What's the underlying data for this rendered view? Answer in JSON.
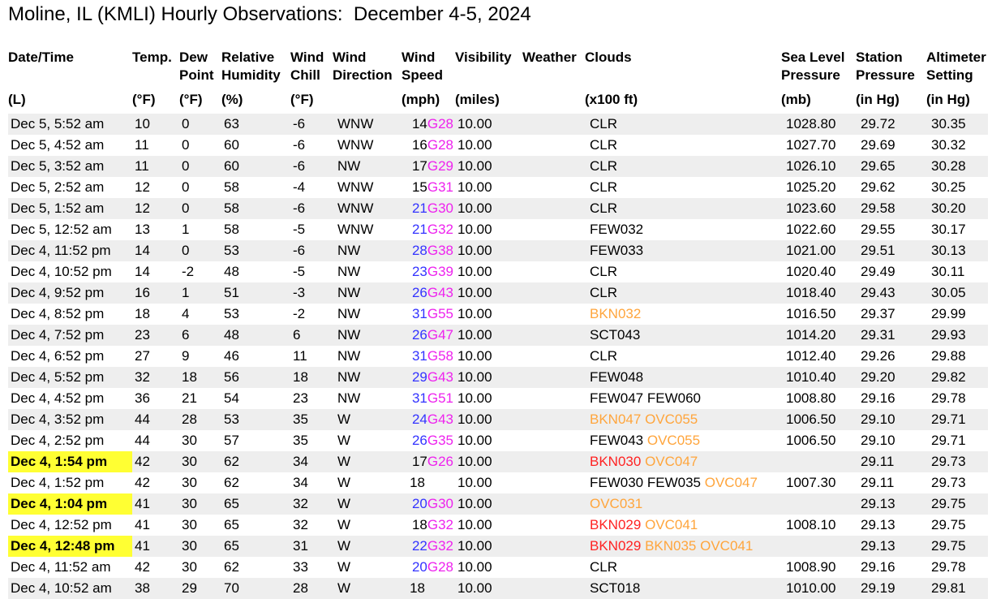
{
  "title": "Moline, IL (KMLI) Hourly Observations:  December 4-5, 2024",
  "colors": {
    "highlight": "#ffff33",
    "wind_sustained_high": "#3333ff",
    "wind_gust": "#ee22ee",
    "cloud_normal": "#000000",
    "cloud_mvfr": "#ffa53c",
    "cloud_ifr": "#ff2222",
    "row_alt": "#eeeeee"
  },
  "headers": [
    {
      "line1": "Date/Time",
      "unit": "(L)"
    },
    {
      "line1": "Temp.",
      "unit": "(°F)"
    },
    {
      "line1": "Dew Point",
      "unit": "(°F)"
    },
    {
      "line1": "Relative Humidity",
      "unit": "(%)"
    },
    {
      "line1": "Wind Chill",
      "unit": "(°F)"
    },
    {
      "line1": "Wind Direction",
      "unit": ""
    },
    {
      "line1": "Wind Speed",
      "unit": "(mph)"
    },
    {
      "line1": "Visibility",
      "unit": "(miles)"
    },
    {
      "line1": "Weather",
      "unit": ""
    },
    {
      "line1": "Clouds",
      "unit": "(x100 ft)"
    },
    {
      "line1": "Sea Level Pressure",
      "unit": "(mb)"
    },
    {
      "line1": "Station Pressure",
      "unit": "(in Hg)"
    },
    {
      "line1": "Altimeter Setting",
      "unit": "(in Hg)"
    }
  ],
  "rows": [
    {
      "time": "Dec 5, 5:52 am",
      "hl": false,
      "temp": "10",
      "dew": "0",
      "rh": "63",
      "chill": "-6",
      "dir": "WNW",
      "ws": "14",
      "wsc": "blk",
      "gust": "G28",
      "vis": "10.00",
      "wx": "",
      "clouds": [
        {
          "t": "CLR",
          "c": "blk"
        }
      ],
      "slp": "1028.80",
      "stn": "29.72",
      "alt": "30.35"
    },
    {
      "time": "Dec 5, 4:52 am",
      "hl": false,
      "temp": "11",
      "dew": "0",
      "rh": "60",
      "chill": "-6",
      "dir": "WNW",
      "ws": "16",
      "wsc": "blk",
      "gust": "G28",
      "vis": "10.00",
      "wx": "",
      "clouds": [
        {
          "t": "CLR",
          "c": "blk"
        }
      ],
      "slp": "1027.70",
      "stn": "29.69",
      "alt": "30.32"
    },
    {
      "time": "Dec 5, 3:52 am",
      "hl": false,
      "temp": "11",
      "dew": "0",
      "rh": "60",
      "chill": "-6",
      "dir": "NW",
      "ws": "17",
      "wsc": "blk",
      "gust": "G29",
      "vis": "10.00",
      "wx": "",
      "clouds": [
        {
          "t": "CLR",
          "c": "blk"
        }
      ],
      "slp": "1026.10",
      "stn": "29.65",
      "alt": "30.28"
    },
    {
      "time": "Dec 5, 2:52 am",
      "hl": false,
      "temp": "12",
      "dew": "0",
      "rh": "58",
      "chill": "-4",
      "dir": "WNW",
      "ws": "15",
      "wsc": "blk",
      "gust": "G31",
      "vis": "10.00",
      "wx": "",
      "clouds": [
        {
          "t": "CLR",
          "c": "blk"
        }
      ],
      "slp": "1025.20",
      "stn": "29.62",
      "alt": "30.25"
    },
    {
      "time": "Dec 5, 1:52 am",
      "hl": false,
      "temp": "12",
      "dew": "0",
      "rh": "58",
      "chill": "-6",
      "dir": "WNW",
      "ws": "21",
      "wsc": "blu",
      "gust": "G30",
      "vis": "10.00",
      "wx": "",
      "clouds": [
        {
          "t": "CLR",
          "c": "blk"
        }
      ],
      "slp": "1023.60",
      "stn": "29.58",
      "alt": "30.20"
    },
    {
      "time": "Dec 5, 12:52 am",
      "hl": false,
      "temp": "13",
      "dew": "1",
      "rh": "58",
      "chill": "-5",
      "dir": "WNW",
      "ws": "21",
      "wsc": "blu",
      "gust": "G32",
      "vis": "10.00",
      "wx": "",
      "clouds": [
        {
          "t": "FEW032",
          "c": "blk"
        }
      ],
      "slp": "1022.60",
      "stn": "29.55",
      "alt": "30.17"
    },
    {
      "time": "Dec 4, 11:52 pm",
      "hl": false,
      "temp": "14",
      "dew": "0",
      "rh": "53",
      "chill": "-6",
      "dir": "NW",
      "ws": "28",
      "wsc": "blu",
      "gust": "G38",
      "vis": "10.00",
      "wx": "",
      "clouds": [
        {
          "t": "FEW033",
          "c": "blk"
        }
      ],
      "slp": "1021.00",
      "stn": "29.51",
      "alt": "30.13"
    },
    {
      "time": "Dec 4, 10:52 pm",
      "hl": false,
      "temp": "14",
      "dew": "-2",
      "rh": "48",
      "chill": "-5",
      "dir": "NW",
      "ws": "23",
      "wsc": "blu",
      "gust": "G39",
      "vis": "10.00",
      "wx": "",
      "clouds": [
        {
          "t": "CLR",
          "c": "blk"
        }
      ],
      "slp": "1020.40",
      "stn": "29.49",
      "alt": "30.11"
    },
    {
      "time": "Dec 4, 9:52 pm",
      "hl": false,
      "temp": "16",
      "dew": "1",
      "rh": "51",
      "chill": "-3",
      "dir": "NW",
      "ws": "26",
      "wsc": "blu",
      "gust": "G43",
      "vis": "10.00",
      "wx": "",
      "clouds": [
        {
          "t": "CLR",
          "c": "blk"
        }
      ],
      "slp": "1018.40",
      "stn": "29.43",
      "alt": "30.05"
    },
    {
      "time": "Dec 4, 8:52 pm",
      "hl": false,
      "temp": "18",
      "dew": "4",
      "rh": "53",
      "chill": "-2",
      "dir": "NW",
      "ws": "31",
      "wsc": "blu",
      "gust": "G55",
      "vis": "10.00",
      "wx": "",
      "clouds": [
        {
          "t": "BKN032",
          "c": "org"
        }
      ],
      "slp": "1016.50",
      "stn": "29.37",
      "alt": "29.99"
    },
    {
      "time": "Dec 4, 7:52 pm",
      "hl": false,
      "temp": "23",
      "dew": "6",
      "rh": "48",
      "chill": "6",
      "dir": "NW",
      "ws": "26",
      "wsc": "blu",
      "gust": "G47",
      "vis": "10.00",
      "wx": "",
      "clouds": [
        {
          "t": "SCT043",
          "c": "blk"
        }
      ],
      "slp": "1014.20",
      "stn": "29.31",
      "alt": "29.93"
    },
    {
      "time": "Dec 4, 6:52 pm",
      "hl": false,
      "temp": "27",
      "dew": "9",
      "rh": "46",
      "chill": "11",
      "dir": "NW",
      "ws": "31",
      "wsc": "blu",
      "gust": "G58",
      "vis": "10.00",
      "wx": "",
      "clouds": [
        {
          "t": "CLR",
          "c": "blk"
        }
      ],
      "slp": "1012.40",
      "stn": "29.26",
      "alt": "29.88"
    },
    {
      "time": "Dec 4, 5:52 pm",
      "hl": false,
      "temp": "32",
      "dew": "18",
      "rh": "56",
      "chill": "18",
      "dir": "NW",
      "ws": "29",
      "wsc": "blu",
      "gust": "G43",
      "vis": "10.00",
      "wx": "",
      "clouds": [
        {
          "t": "FEW048",
          "c": "blk"
        }
      ],
      "slp": "1010.40",
      "stn": "29.20",
      "alt": "29.82"
    },
    {
      "time": "Dec 4, 4:52 pm",
      "hl": false,
      "temp": "36",
      "dew": "21",
      "rh": "54",
      "chill": "23",
      "dir": "NW",
      "ws": "31",
      "wsc": "blu",
      "gust": "G51",
      "vis": "10.00",
      "wx": "",
      "clouds": [
        {
          "t": "FEW047",
          "c": "blk"
        },
        {
          "t": "FEW060",
          "c": "blk"
        }
      ],
      "slp": "1008.80",
      "stn": "29.16",
      "alt": "29.78"
    },
    {
      "time": "Dec 4, 3:52 pm",
      "hl": false,
      "temp": "44",
      "dew": "28",
      "rh": "53",
      "chill": "35",
      "dir": "W",
      "ws": "24",
      "wsc": "blu",
      "gust": "G43",
      "vis": "10.00",
      "wx": "",
      "clouds": [
        {
          "t": "BKN047",
          "c": "org"
        },
        {
          "t": "OVC055",
          "c": "org"
        }
      ],
      "slp": "1006.50",
      "stn": "29.10",
      "alt": "29.71"
    },
    {
      "time": "Dec 4, 2:52 pm",
      "hl": false,
      "temp": "44",
      "dew": "30",
      "rh": "57",
      "chill": "35",
      "dir": "W",
      "ws": "26",
      "wsc": "blu",
      "gust": "G35",
      "vis": "10.00",
      "wx": "",
      "clouds": [
        {
          "t": "FEW043",
          "c": "blk"
        },
        {
          "t": "OVC055",
          "c": "org"
        }
      ],
      "slp": "1006.50",
      "stn": "29.10",
      "alt": "29.71"
    },
    {
      "time": "Dec 4, 1:54 pm",
      "hl": true,
      "temp": "42",
      "dew": "30",
      "rh": "62",
      "chill": "34",
      "dir": "W",
      "ws": "17",
      "wsc": "blk",
      "gust": "G26",
      "vis": "10.00",
      "wx": "",
      "clouds": [
        {
          "t": "BKN030",
          "c": "red"
        },
        {
          "t": "OVC047",
          "c": "org"
        }
      ],
      "slp": "",
      "stn": "29.11",
      "alt": "29.73"
    },
    {
      "time": "Dec 4, 1:52 pm",
      "hl": false,
      "temp": "42",
      "dew": "30",
      "rh": "62",
      "chill": "34",
      "dir": "W",
      "ws": "18",
      "wsc": "blk",
      "gust": "",
      "vis": "10.00",
      "wx": "",
      "clouds": [
        {
          "t": "FEW030",
          "c": "blk"
        },
        {
          "t": "FEW035",
          "c": "blk"
        },
        {
          "t": "OVC047",
          "c": "org"
        }
      ],
      "slp": "1007.30",
      "stn": "29.11",
      "alt": "29.73"
    },
    {
      "time": "Dec 4, 1:04 pm",
      "hl": true,
      "temp": "41",
      "dew": "30",
      "rh": "65",
      "chill": "32",
      "dir": "W",
      "ws": "20",
      "wsc": "blu",
      "gust": "G30",
      "vis": "10.00",
      "wx": "",
      "clouds": [
        {
          "t": "OVC031",
          "c": "org"
        }
      ],
      "slp": "",
      "stn": "29.13",
      "alt": "29.75"
    },
    {
      "time": "Dec 4, 12:52 pm",
      "hl": false,
      "temp": "41",
      "dew": "30",
      "rh": "65",
      "chill": "32",
      "dir": "W",
      "ws": "18",
      "wsc": "blk",
      "gust": "G32",
      "vis": "10.00",
      "wx": "",
      "clouds": [
        {
          "t": "BKN029",
          "c": "red"
        },
        {
          "t": "OVC041",
          "c": "org"
        }
      ],
      "slp": "1008.10",
      "stn": "29.13",
      "alt": "29.75"
    },
    {
      "time": "Dec 4, 12:48 pm",
      "hl": true,
      "temp": "41",
      "dew": "30",
      "rh": "65",
      "chill": "31",
      "dir": "W",
      "ws": "22",
      "wsc": "blu",
      "gust": "G32",
      "vis": "10.00",
      "wx": "",
      "clouds": [
        {
          "t": "BKN029",
          "c": "red"
        },
        {
          "t": "BKN035",
          "c": "org"
        },
        {
          "t": "OVC041",
          "c": "org"
        }
      ],
      "slp": "",
      "stn": "29.13",
      "alt": "29.75"
    },
    {
      "time": "Dec 4, 11:52 am",
      "hl": false,
      "temp": "42",
      "dew": "30",
      "rh": "62",
      "chill": "33",
      "dir": "W",
      "ws": "20",
      "wsc": "blu",
      "gust": "G28",
      "vis": "10.00",
      "wx": "",
      "clouds": [
        {
          "t": "CLR",
          "c": "blk"
        }
      ],
      "slp": "1008.90",
      "stn": "29.16",
      "alt": "29.78"
    },
    {
      "time": "Dec 4, 10:52 am",
      "hl": false,
      "temp": "38",
      "dew": "29",
      "rh": "70",
      "chill": "28",
      "dir": "W",
      "ws": "18",
      "wsc": "blk",
      "gust": "",
      "vis": "10.00",
      "wx": "",
      "clouds": [
        {
          "t": "SCT018",
          "c": "blk"
        }
      ],
      "slp": "1010.00",
      "stn": "29.19",
      "alt": "29.81"
    }
  ]
}
